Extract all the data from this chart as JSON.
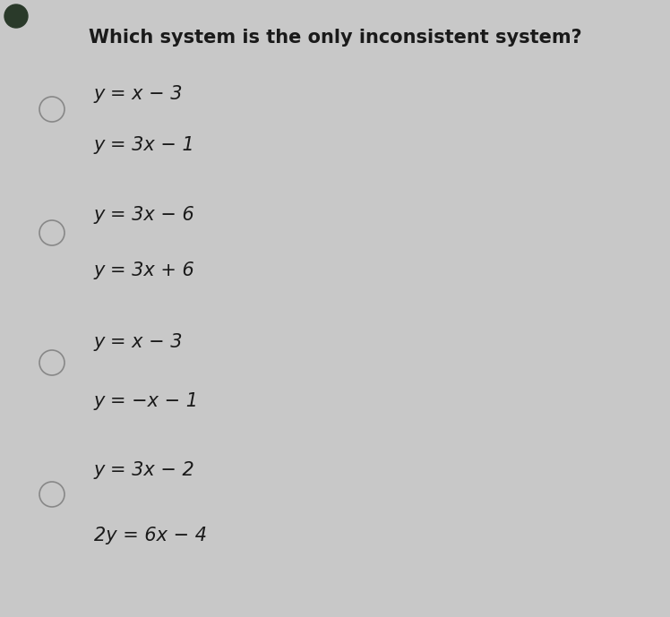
{
  "title": "Which system is the only inconsistent system?",
  "title_fontsize": 15,
  "options": [
    {
      "line1": "y = x − 3",
      "line2": "y = 3x − 1"
    },
    {
      "line1": "y = 3x − 6",
      "line2": "y = 3x + 6"
    },
    {
      "line1": "y = x − 3",
      "line2": "y = −x − 1"
    },
    {
      "line1": "y = 3x − 2",
      "line2": "2y = 6x − 4"
    }
  ],
  "bg_color": "#c8c8c8",
  "text_color": "#1a1a1a",
  "equation_fontsize": 15,
  "dot_color": "#2a3a2a",
  "circle_edge_color": "#888888",
  "circle_linewidth": 1.2
}
